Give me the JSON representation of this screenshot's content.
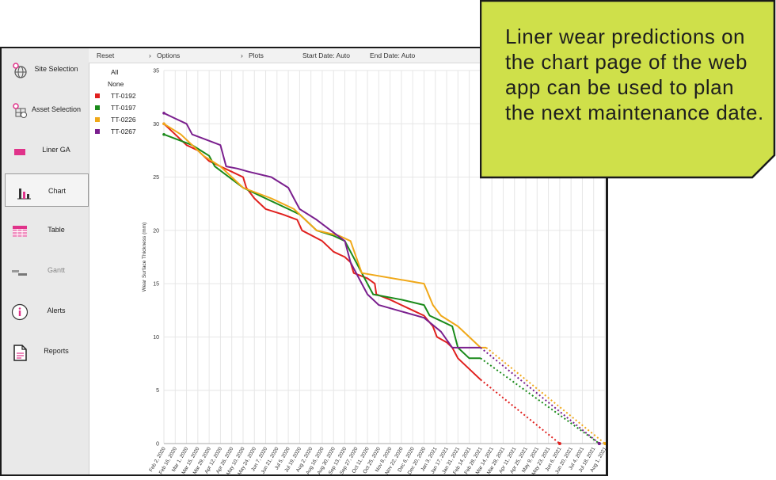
{
  "sidebar": {
    "items": [
      {
        "label": "Site Selection",
        "icon": "globe-pin-icon"
      },
      {
        "label": "Asset Selection",
        "icon": "grid-globe-pin-icon"
      },
      {
        "label": "Liner GA",
        "icon": "liner-icon"
      },
      {
        "label": "Chart",
        "icon": "bar-chart-icon",
        "active": true
      },
      {
        "label": "Table",
        "icon": "table-icon"
      },
      {
        "label": "Gantt",
        "icon": "gantt-icon",
        "disabled": true
      },
      {
        "label": "Alerts",
        "icon": "info-icon"
      },
      {
        "label": "Reports",
        "icon": "document-icon"
      }
    ]
  },
  "toolbar": {
    "reset": "Reset",
    "options": "Options",
    "plots": "Plots",
    "start_date": "Start Date:  Auto",
    "end_date": "End Date:  Auto"
  },
  "legend": {
    "all": "All",
    "none": "None"
  },
  "colors": {
    "TT-0192": "#e0201e",
    "TT-0197": "#1a8a1a",
    "TT-0226": "#f0a818",
    "TT-0267": "#7a1f8e",
    "accent": "#e0338a",
    "callout_bg": "#cfe04a"
  },
  "callout": {
    "text": "Liner wear predictions on the chart page of the web app can be used to plan the next maintenance date."
  },
  "chart_data": {
    "type": "line",
    "ylabel": "Wear Surface Thickness (mm)",
    "xlabel": "",
    "ylim": [
      0,
      35
    ],
    "yticks": [
      0,
      5,
      10,
      15,
      20,
      25,
      30,
      35
    ],
    "xlim": [
      "Feb 2, 2020",
      "Aug 1, 2021"
    ],
    "xticks": [
      "Feb 2, 2020",
      "Feb 16, 2020",
      "Mar 1, 2020",
      "Mar 15, 2020",
      "Mar 29, 2020",
      "Apr 12, 2020",
      "Apr 26, 2020",
      "May 10, 2020",
      "May 24, 2020",
      "Jun 7, 2020",
      "Jun 21, 2020",
      "Jul 5, 2020",
      "Jul 19, 2020",
      "Aug 2, 2020",
      "Aug 16, 2020",
      "Aug 30, 2020",
      "Sep 13, 2020",
      "Sep 27, 2020",
      "Oct 11, 2020",
      "Oct 25, 2020",
      "Nov 8, 2020",
      "Nov 22, 2020",
      "Dec 6, 2020",
      "Dec 20, 2020",
      "Jan 3, 2021",
      "Jan 17, 2021",
      "Jan 31, 2021",
      "Feb 14, 2021",
      "Feb 28, 2021",
      "Mar 14, 2021",
      "Mar 28, 2021",
      "Apr 11, 2021",
      "Apr 25, 2021",
      "May 9, 2021",
      "May 23, 2021",
      "Jun 6, 2021",
      "Jun 20, 2021",
      "Jul 4, 2021",
      "Jul 18, 2021",
      "Aug 1, 2021"
    ],
    "grid": true,
    "legend_position": "top-left",
    "series": [
      {
        "name": "TT-0192",
        "measured": [
          [
            "2020-02-02",
            30
          ],
          [
            "2020-02-16",
            29
          ],
          [
            "2020-03-01",
            28
          ],
          [
            "2020-03-15",
            27.5
          ],
          [
            "2020-03-29",
            26.5
          ],
          [
            "2020-04-12",
            26
          ],
          [
            "2020-04-26",
            25.5
          ],
          [
            "2020-05-10",
            25
          ],
          [
            "2020-05-14",
            24
          ],
          [
            "2020-05-24",
            23
          ],
          [
            "2020-06-07",
            22
          ],
          [
            "2020-06-28",
            21.5
          ],
          [
            "2020-07-16",
            21
          ],
          [
            "2020-07-22",
            20
          ],
          [
            "2020-08-16",
            19
          ],
          [
            "2020-08-30",
            18
          ],
          [
            "2020-09-13",
            17.5
          ],
          [
            "2020-09-20",
            17
          ],
          [
            "2020-09-24",
            16
          ],
          [
            "2020-10-11",
            15.5
          ],
          [
            "2020-10-20",
            15
          ],
          [
            "2020-10-22",
            14
          ],
          [
            "2020-11-08",
            13.5
          ],
          [
            "2020-11-22",
            13
          ],
          [
            "2020-12-06",
            12.5
          ],
          [
            "2020-12-20",
            12
          ],
          [
            "2020-12-31",
            11
          ],
          [
            "2021-01-05",
            10
          ],
          [
            "2021-01-17",
            9.5
          ],
          [
            "2021-01-24",
            9
          ],
          [
            "2021-01-31",
            8
          ],
          [
            "2021-02-14",
            7
          ],
          [
            "2021-02-28",
            6
          ]
        ],
        "predicted": [
          [
            "2021-02-28",
            6
          ],
          [
            "2021-06-06",
            0
          ]
        ]
      },
      {
        "name": "TT-0197",
        "measured": [
          [
            "2020-02-02",
            29
          ],
          [
            "2020-03-08",
            28
          ],
          [
            "2020-03-29",
            27
          ],
          [
            "2020-04-05",
            26
          ],
          [
            "2020-05-10",
            24
          ],
          [
            "2020-06-07",
            23
          ],
          [
            "2020-07-05",
            22
          ],
          [
            "2020-07-19",
            21.5
          ],
          [
            "2020-08-09",
            20
          ],
          [
            "2020-08-30",
            19.5
          ],
          [
            "2020-09-13",
            19
          ],
          [
            "2020-09-27",
            17
          ],
          [
            "2020-10-04",
            16
          ],
          [
            "2020-10-18",
            14
          ],
          [
            "2020-11-22",
            13.5
          ],
          [
            "2020-12-20",
            13
          ],
          [
            "2020-12-27",
            12
          ],
          [
            "2021-01-10",
            11.5
          ],
          [
            "2021-01-24",
            11
          ],
          [
            "2021-01-31",
            9
          ],
          [
            "2021-02-14",
            8
          ],
          [
            "2021-02-28",
            8
          ]
        ],
        "predicted": [
          [
            "2021-02-28",
            8
          ],
          [
            "2021-07-25",
            0
          ]
        ]
      },
      {
        "name": "TT-0226",
        "measured": [
          [
            "2020-02-02",
            30
          ],
          [
            "2020-02-23",
            29
          ],
          [
            "2020-03-22",
            27
          ],
          [
            "2020-04-12",
            26
          ],
          [
            "2020-05-10",
            24
          ],
          [
            "2020-06-14",
            23
          ],
          [
            "2020-07-12",
            22
          ],
          [
            "2020-07-26",
            21
          ],
          [
            "2020-08-09",
            20
          ],
          [
            "2020-09-06",
            19.5
          ],
          [
            "2020-09-20",
            19
          ],
          [
            "2020-10-04",
            16
          ],
          [
            "2020-12-20",
            15
          ],
          [
            "2020-12-31",
            13
          ],
          [
            "2021-01-10",
            12
          ],
          [
            "2021-01-31",
            11
          ],
          [
            "2021-02-14",
            10
          ],
          [
            "2021-02-28",
            9
          ],
          [
            "2021-03-07",
            9
          ]
        ],
        "predicted": [
          [
            "2021-03-07",
            9
          ],
          [
            "2021-08-01",
            0
          ]
        ]
      },
      {
        "name": "TT-0267",
        "measured": [
          [
            "2020-02-02",
            31
          ],
          [
            "2020-02-16",
            30.5
          ],
          [
            "2020-03-01",
            30
          ],
          [
            "2020-03-08",
            29
          ],
          [
            "2020-04-12",
            28
          ],
          [
            "2020-04-19",
            26
          ],
          [
            "2020-05-03",
            25.8
          ],
          [
            "2020-05-17",
            25.5
          ],
          [
            "2020-06-14",
            25
          ],
          [
            "2020-07-05",
            24
          ],
          [
            "2020-07-12",
            23
          ],
          [
            "2020-07-19",
            22
          ],
          [
            "2020-08-09",
            21
          ],
          [
            "2020-09-13",
            19
          ],
          [
            "2020-09-20",
            17
          ],
          [
            "2020-09-27",
            16
          ],
          [
            "2020-10-04",
            15
          ],
          [
            "2020-10-11",
            14
          ],
          [
            "2020-10-25",
            13
          ],
          [
            "2020-12-20",
            11.8
          ],
          [
            "2021-01-10",
            10.5
          ],
          [
            "2021-01-24",
            9
          ],
          [
            "2021-02-14",
            9
          ],
          [
            "2021-02-28",
            9
          ]
        ],
        "predicted": [
          [
            "2021-02-28",
            9
          ],
          [
            "2021-07-25",
            0
          ]
        ]
      }
    ]
  }
}
